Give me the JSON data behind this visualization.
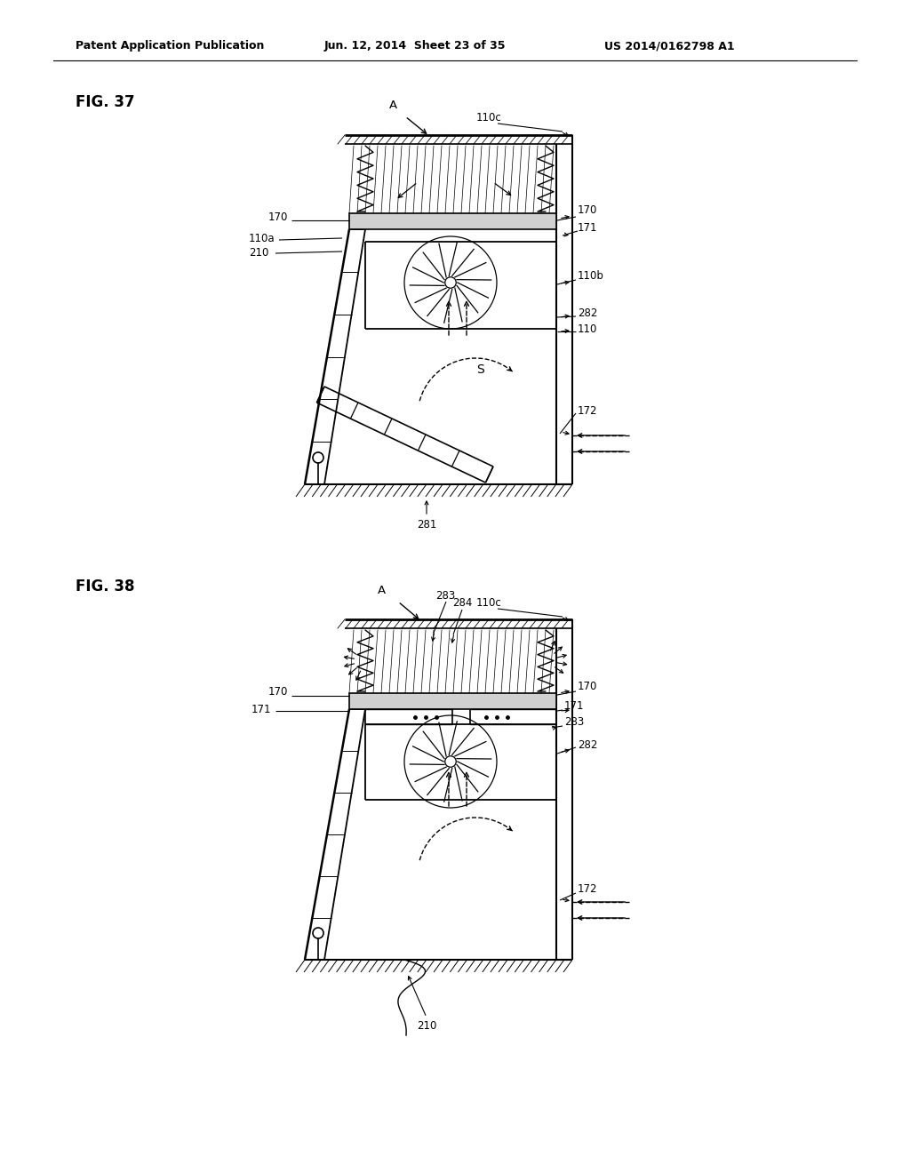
{
  "bg_color": "#ffffff",
  "line_color": "#000000",
  "header_left": "Patent Application Publication",
  "header_mid": "Jun. 12, 2014  Sheet 23 of 35",
  "header_right": "US 2014/0162798 A1",
  "fig37_label": "FIG. 37",
  "fig38_label": "FIG. 38"
}
